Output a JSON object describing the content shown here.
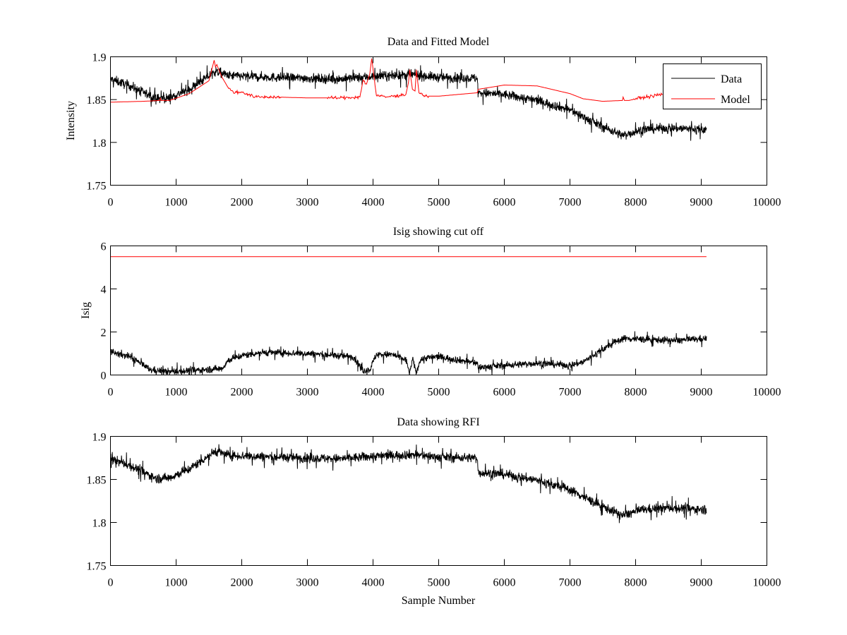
{
  "figure": {
    "background": "#ffffff",
    "data_color": "#000000",
    "model_color": "#ff0000"
  },
  "chart_data": [
    {
      "type": "line",
      "title": "Data and Fitted Model",
      "xlabel": "",
      "ylabel": "Intensity",
      "xlim": [
        0,
        10000
      ],
      "ylim": [
        1.75,
        1.9
      ],
      "xticks": [
        "0",
        "1000",
        "2000",
        "3000",
        "4000",
        "5000",
        "6000",
        "7000",
        "8000",
        "9000",
        "10000"
      ],
      "yticks": [
        "1.75",
        "1.8",
        "1.85",
        "1.9"
      ],
      "legend": {
        "placement": "top-right",
        "entries": [
          "Data",
          "Model"
        ]
      },
      "series": [
        {
          "name": "Data",
          "color": "#000000",
          "noise": 0.006,
          "x": [
            0,
            300,
            700,
            900,
            1200,
            1600,
            1800,
            2500,
            3500,
            4000,
            4600,
            5000,
            5590,
            5600,
            6000,
            6500,
            7000,
            7400,
            7800,
            8100,
            8500,
            9080
          ],
          "y": [
            1.874,
            1.866,
            1.851,
            1.852,
            1.862,
            1.883,
            1.878,
            1.876,
            1.874,
            1.877,
            1.879,
            1.876,
            1.875,
            1.858,
            1.856,
            1.849,
            1.838,
            1.822,
            1.808,
            1.815,
            1.817,
            1.815
          ]
        },
        {
          "name": "Model",
          "color": "#ff0000",
          "x": [
            0,
            500,
            750,
            760,
            770,
            900,
            1200,
            1500,
            1580,
            1600,
            1620,
            1650,
            1700,
            1800,
            1900,
            2000,
            2200,
            2500,
            3000,
            3500,
            3800,
            3850,
            3900,
            3950,
            3980,
            4050,
            4200,
            4500,
            4540,
            4560,
            4600,
            4640,
            4660,
            4700,
            4800,
            5000,
            5590,
            5600,
            6000,
            6500,
            7000,
            7200,
            7500,
            7800,
            7810,
            7830,
            7900,
            8000,
            8400,
            8800,
            9080
          ],
          "y": [
            1.847,
            1.848,
            1.849,
            1.852,
            1.849,
            1.849,
            1.857,
            1.872,
            1.896,
            1.888,
            1.891,
            1.885,
            1.876,
            1.863,
            1.858,
            1.859,
            1.853,
            1.853,
            1.852,
            1.852,
            1.853,
            1.873,
            1.868,
            1.88,
            1.898,
            1.855,
            1.853,
            1.856,
            1.87,
            1.885,
            1.862,
            1.86,
            1.885,
            1.858,
            1.854,
            1.854,
            1.858,
            1.862,
            1.867,
            1.866,
            1.857,
            1.851,
            1.848,
            1.849,
            1.853,
            1.849,
            1.849,
            1.851,
            1.856,
            1.856,
            1.856
          ]
        }
      ]
    },
    {
      "type": "line",
      "title": "Isig showing cut off",
      "xlabel": "",
      "ylabel": "Isig",
      "xlim": [
        0,
        10000
      ],
      "ylim": [
        0,
        6
      ],
      "xticks": [
        "0",
        "1000",
        "2000",
        "3000",
        "4000",
        "5000",
        "6000",
        "7000",
        "8000",
        "9000",
        "10000"
      ],
      "yticks": [
        "0",
        "2",
        "4",
        "6"
      ],
      "series": [
        {
          "name": "Isig",
          "color": "#000000",
          "noise": 0.18,
          "x": [
            0,
            300,
            600,
            900,
            1200,
            1700,
            1800,
            2000,
            2300,
            3000,
            3700,
            3850,
            3950,
            4050,
            4300,
            4500,
            4560,
            4600,
            4660,
            4720,
            4800,
            5000,
            5590,
            5600,
            6000,
            6500,
            7000,
            7200,
            7500,
            7800,
            8200,
            8600,
            9080
          ],
          "y": [
            1.1,
            0.85,
            0.25,
            0.15,
            0.2,
            0.3,
            0.7,
            0.9,
            1.05,
            1.0,
            0.85,
            0.2,
            0.25,
            0.95,
            0.95,
            0.7,
            0.1,
            0.75,
            0.1,
            0.7,
            0.8,
            0.85,
            0.55,
            0.35,
            0.45,
            0.55,
            0.45,
            0.6,
            1.2,
            1.7,
            1.65,
            1.6,
            1.7
          ]
        },
        {
          "name": "Cut off",
          "color": "#ff0000",
          "x": [
            0,
            9080
          ],
          "y": [
            5.5,
            5.5
          ]
        }
      ]
    },
    {
      "type": "line",
      "title": "Data showing RFI",
      "xlabel": "Sample Number",
      "ylabel": "",
      "xlim": [
        0,
        10000
      ],
      "ylim": [
        1.75,
        1.9
      ],
      "xticks": [
        "0",
        "1000",
        "2000",
        "3000",
        "4000",
        "5000",
        "6000",
        "7000",
        "8000",
        "9000",
        "10000"
      ],
      "yticks": [
        "1.75",
        "1.8",
        "1.85",
        "1.9"
      ],
      "series": [
        {
          "name": "Data",
          "color": "#000000",
          "noise": 0.006,
          "x": [
            0,
            300,
            700,
            900,
            1200,
            1600,
            1800,
            2500,
            3500,
            4000,
            4600,
            5000,
            5590,
            5600,
            6000,
            6500,
            7000,
            7400,
            7800,
            8100,
            8500,
            9080
          ],
          "y": [
            1.874,
            1.866,
            1.851,
            1.852,
            1.862,
            1.883,
            1.878,
            1.876,
            1.874,
            1.877,
            1.879,
            1.876,
            1.875,
            1.858,
            1.856,
            1.849,
            1.838,
            1.822,
            1.808,
            1.815,
            1.817,
            1.815
          ]
        }
      ]
    }
  ]
}
